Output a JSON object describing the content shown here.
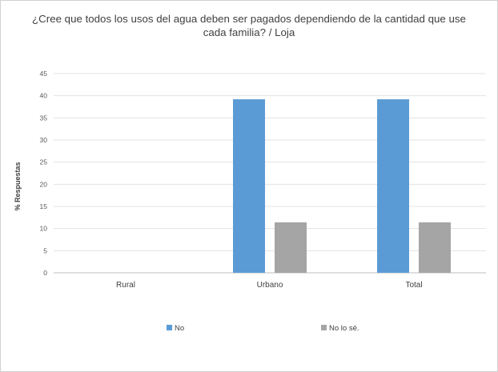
{
  "chart_data": {
    "type": "bar",
    "title": "¿Cree que todos los usos del agua deben ser pagados dependiendo de la cantidad que use cada familia? / Loja",
    "ylabel": "% Respuestas",
    "xlabel": "",
    "categories": [
      "Rural",
      "Urbano",
      "Total"
    ],
    "series": [
      {
        "name": "No",
        "color": "#5B9BD5",
        "values": [
          0,
          39.2,
          39.2
        ]
      },
      {
        "name": "No lo sé.",
        "color": "#A5A5A5",
        "values": [
          0,
          11.4,
          11.4
        ]
      }
    ],
    "ylim": [
      0,
      45
    ],
    "yticks": [
      0,
      5,
      10,
      15,
      20,
      25,
      30,
      35,
      40,
      45
    ],
    "grid": true,
    "legend_position": "bottom"
  }
}
